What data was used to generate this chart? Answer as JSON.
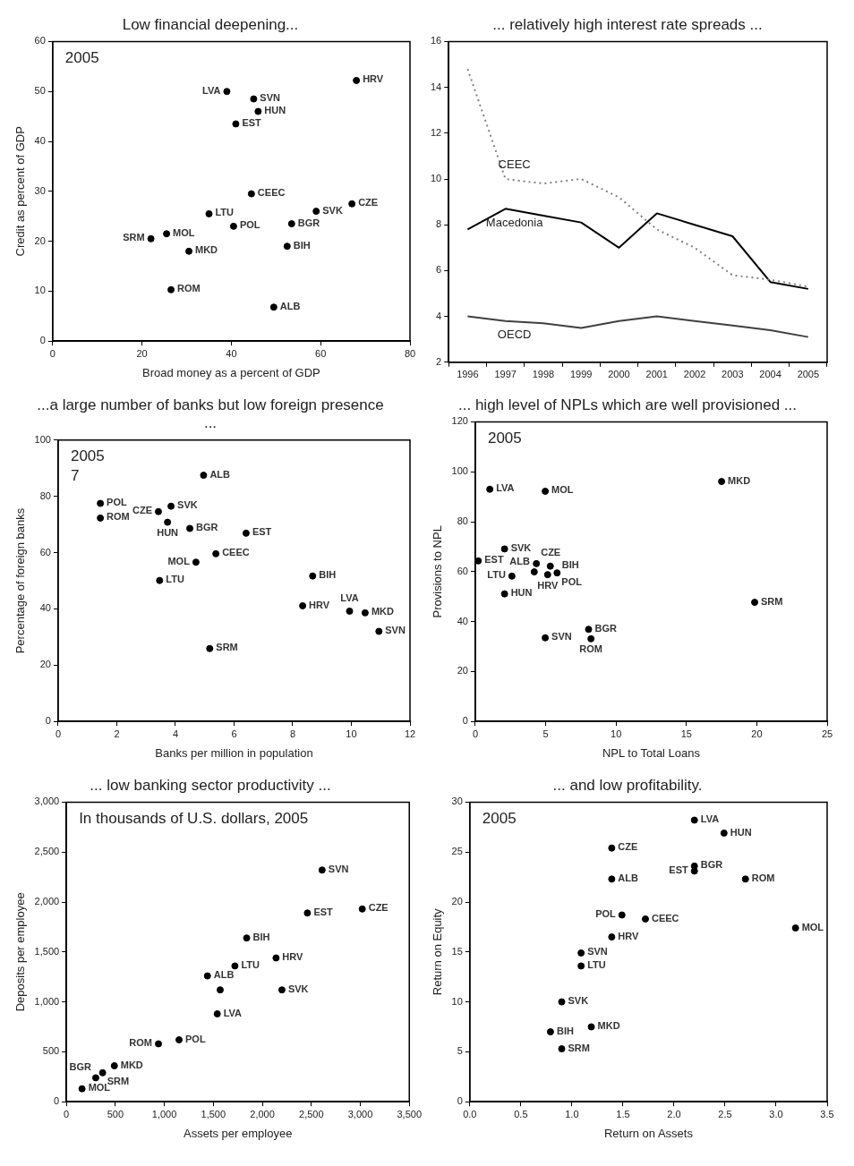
{
  "chart_data": [
    {
      "type": "scatter",
      "title": "Low financial deepening...",
      "xlabel": "Broad money as a percent of GDP",
      "ylabel": "Credit as percent of GDP",
      "xlim": [
        0,
        80
      ],
      "xticks": [
        0,
        20,
        40,
        60,
        80
      ],
      "ylim": [
        0,
        60
      ],
      "yticks": [
        0,
        10,
        20,
        30,
        40,
        50,
        60
      ],
      "marker": "circle",
      "series": [
        {
          "color": "#000000",
          "x": [
            68,
            39,
            45,
            46,
            41,
            44.5,
            35,
            59,
            67,
            53.5,
            52.5,
            40.5,
            25.5,
            22,
            30.5,
            26.5,
            49.5
          ],
          "values": [
            52.2,
            50,
            48.5,
            46,
            43.5,
            29.5,
            25.5,
            26,
            27.5,
            23.5,
            19,
            23,
            21.5,
            20.5,
            18,
            10.3,
            6.8
          ]
        }
      ],
      "annotations": [
        "2005",
        {
          "text": "HRV",
          "x": 68,
          "y": 52.2
        },
        {
          "text": "LVA",
          "x": 39,
          "y": 50
        },
        {
          "text": "SVN",
          "x": 45,
          "y": 48.5
        },
        {
          "text": "HUN",
          "x": 46,
          "y": 46
        },
        {
          "text": "EST",
          "x": 41,
          "y": 43.5
        },
        {
          "text": "CEEC",
          "x": 44.5,
          "y": 29.5
        },
        {
          "text": "LTU",
          "x": 35,
          "y": 25.5
        },
        {
          "text": "SVK",
          "x": 59,
          "y": 26
        },
        {
          "text": "CZE",
          "x": 67,
          "y": 27.5
        },
        {
          "text": "BGR",
          "x": 53.5,
          "y": 23.5
        },
        {
          "text": "BIH",
          "x": 52.5,
          "y": 19
        },
        {
          "text": "POL",
          "x": 40.5,
          "y": 23
        },
        {
          "text": "MOL",
          "x": 25.5,
          "y": 21.5
        },
        {
          "text": "SRM",
          "x": 22,
          "y": 20.5
        },
        {
          "text": "MKD",
          "x": 30.5,
          "y": 18
        },
        {
          "text": "ROM",
          "x": 26.5,
          "y": 10.3
        },
        {
          "text": "ALB",
          "x": 49.5,
          "y": 6.8
        }
      ]
    },
    {
      "type": "line",
      "title": "... relatively high interest rate spreads ...",
      "categories": [
        "1996",
        "1997",
        "1998",
        "1999",
        "2000",
        "2001",
        "2002",
        "2003",
        "2004",
        "2005"
      ],
      "ylim": [
        2,
        16
      ],
      "yticks": [
        2,
        4,
        6,
        8,
        10,
        12,
        14,
        16
      ],
      "series": [
        {
          "name": "CEEC",
          "color": "#808080",
          "line_style": "dotted",
          "values": [
            14.8,
            10,
            9.8,
            10,
            9.2,
            7.8,
            7,
            5.8,
            5.6,
            5.3
          ]
        },
        {
          "name": "Macedonia",
          "color": "#000000",
          "line_style": "solid",
          "values": [
            7.8,
            8.7,
            8.4,
            8.1,
            7,
            8.5,
            8,
            7.5,
            5.5,
            5.2
          ]
        },
        {
          "name": "OECD",
          "color": "#404040",
          "line_style": "solid",
          "values": [
            4,
            3.8,
            3.7,
            3.5,
            3.8,
            4,
            3.8,
            3.6,
            3.4,
            3.1
          ]
        }
      ]
    },
    {
      "type": "scatter",
      "title": "...a large number of banks but low foreign presence ...",
      "xlabel": "Banks per million in population",
      "ylabel": "Percentage of foreign banks",
      "xlim": [
        0,
        12
      ],
      "xticks": [
        0,
        2,
        4,
        6,
        8,
        10,
        12
      ],
      "ylim": [
        0,
        100
      ],
      "yticks": [
        0,
        20,
        40,
        60,
        80,
        100
      ],
      "marker": "circle",
      "series": [
        {
          "color": "#000000",
          "x": [
            1.44,
            1.44,
            3.42,
            3.85,
            3.73,
            4.49,
            4.96,
            6.41,
            5.38,
            4.7,
            3.46,
            5.17,
            8.68,
            8.34,
            9.94,
            10.47,
            10.94
          ],
          "values": [
            77.5,
            72.3,
            74.6,
            76.5,
            70.8,
            68.6,
            87.5,
            66.9,
            59.6,
            56.6,
            50.1,
            25.9,
            51.7,
            41.1,
            39.2,
            38.6,
            32
          ]
        }
      ],
      "annotations": [
        "2005",
        "7",
        {
          "text": "POL",
          "x": 1.44,
          "y": 77.5
        },
        {
          "text": "ROM",
          "x": 1.44,
          "y": 72.3
        },
        {
          "text": "CZE",
          "x": 3.42,
          "y": 74.6
        },
        {
          "text": "SVK",
          "x": 3.85,
          "y": 76.5
        },
        {
          "text": "HUN",
          "x": 3.73,
          "y": 70.8
        },
        {
          "text": "BGR",
          "x": 4.49,
          "y": 68.6
        },
        {
          "text": "ALB",
          "x": 4.96,
          "y": 87.5
        },
        {
          "text": "EST",
          "x": 6.41,
          "y": 66.9
        },
        {
          "text": "CEEC",
          "x": 5.38,
          "y": 59.6
        },
        {
          "text": "MOL",
          "x": 4.7,
          "y": 56.6
        },
        {
          "text": "LTU",
          "x": 3.46,
          "y": 50.1
        },
        {
          "text": "SRM",
          "x": 5.17,
          "y": 25.9
        },
        {
          "text": "BIH",
          "x": 8.68,
          "y": 51.7
        },
        {
          "text": "HRV",
          "x": 8.34,
          "y": 41.1
        },
        {
          "text": "LVA",
          "x": 9.94,
          "y": 39.2
        },
        {
          "text": "MKD",
          "x": 10.47,
          "y": 38.6
        },
        {
          "text": "SVN",
          "x": 10.94,
          "y": 32
        }
      ]
    },
    {
      "type": "scatter",
      "title": "... high level of NPLs which are well provisioned ...",
      "xlabel": "NPL to Total Loans",
      "ylabel": "Provisions to NPL",
      "xlim": [
        0,
        25
      ],
      "xticks": [
        0,
        5,
        10,
        15,
        20,
        25
      ],
      "ylim": [
        0,
        120
      ],
      "yticks": [
        0,
        20,
        40,
        60,
        80,
        100,
        120
      ],
      "marker": "circle",
      "series": [
        {
          "color": "#000000",
          "x": [
            1.03,
            4.97,
            17.5,
            2.08,
            0.21,
            2.6,
            4.34,
            4.19,
            5.33,
            5.14,
            5.81,
            2.08,
            4.97,
            8.05,
            8.22,
            19.85
          ],
          "values": [
            93,
            92.2,
            96.1,
            69.1,
            64.3,
            58.2,
            63.2,
            59.9,
            62.2,
            58.8,
            59.5,
            51.1,
            33.5,
            36.9,
            33.1,
            47.7
          ]
        }
      ],
      "annotations": [
        "2005",
        {
          "text": "LVA",
          "x": 1.03,
          "y": 93
        },
        {
          "text": "MOL",
          "x": 4.97,
          "y": 92.2
        },
        {
          "text": "MKD",
          "x": 17.5,
          "y": 96.1
        },
        {
          "text": "SVK",
          "x": 2.08,
          "y": 69.1
        },
        {
          "text": "EST",
          "x": 0.21,
          "y": 64.3
        },
        {
          "text": "LTU",
          "x": 2.6,
          "y": 58.2
        },
        {
          "text": "CZE",
          "x": 4.34,
          "y": 63.2
        },
        {
          "text": "ALB",
          "x": 4.19,
          "y": 59.9
        },
        {
          "text": "BIH",
          "x": 5.33,
          "y": 62.2
        },
        {
          "text": "HRV",
          "x": 5.14,
          "y": 58.8
        },
        {
          "text": "POL",
          "x": 5.81,
          "y": 59.5
        },
        {
          "text": "HUN",
          "x": 2.08,
          "y": 51.1
        },
        {
          "text": "SVN",
          "x": 4.97,
          "y": 33.5
        },
        {
          "text": "BGR",
          "x": 8.05,
          "y": 36.9
        },
        {
          "text": "ROM",
          "x": 8.22,
          "y": 33.1
        },
        {
          "text": "SRM",
          "x": 19.85,
          "y": 47.7
        }
      ]
    },
    {
      "type": "scatter",
      "title": "... low banking sector productivity ...",
      "xlabel": "Assets per employee",
      "ylabel": "Deposits per employee",
      "xlim": [
        0,
        3500
      ],
      "xticks": [
        0,
        500,
        {
          "value": 1000,
          "label": "1,000"
        },
        {
          "value": 1500,
          "label": "1,500"
        },
        {
          "value": 2000,
          "label": "2,000"
        },
        {
          "value": 2500,
          "label": "2,500"
        },
        {
          "value": 3000,
          "label": "3,000"
        },
        {
          "value": 3500,
          "label": "3,500"
        }
      ],
      "ylim": [
        0,
        3000
      ],
      "yticks": [
        0,
        500,
        {
          "value": 1000,
          "label": "1,000"
        },
        {
          "value": 1500,
          "label": "1,500"
        },
        {
          "value": 2000,
          "label": "2,000"
        },
        {
          "value": 2500,
          "label": "2,500"
        },
        {
          "value": 3000,
          "label": "3,000"
        }
      ],
      "marker": "circle",
      "series": [
        {
          "color": "#000000",
          "x": [
            2610,
            2460,
            3020,
            1840,
            2140,
            1440,
            1720,
            1570,
            2200,
            1540,
            1150,
            940,
            490,
            370,
            300,
            160
          ],
          "values": [
            2320,
            1890,
            1930,
            1640,
            1440,
            1260,
            1360,
            1120,
            1120,
            880,
            620,
            580,
            360,
            290,
            240,
            130
          ]
        }
      ],
      "annotations": [
        "In thousands of U.S. dollars, 2005",
        {
          "text": "SVN",
          "x": 2610,
          "y": 2320
        },
        {
          "text": "EST",
          "x": 2460,
          "y": 1890
        },
        {
          "text": "CZE",
          "x": 3020,
          "y": 1930
        },
        {
          "text": "BIH",
          "x": 1840,
          "y": 1640
        },
        {
          "text": "HRV",
          "x": 2140,
          "y": 1440
        },
        {
          "text": "ALB",
          "x": 1440,
          "y": 1260
        },
        {
          "text": "LTU",
          "x": 1720,
          "y": 1360
        },
        {
          "text": "SVK",
          "x": 2200,
          "y": 1120
        },
        {
          "text": "LVA",
          "x": 1540,
          "y": 880
        },
        {
          "text": "POL",
          "x": 1150,
          "y": 620
        },
        {
          "text": "ROM",
          "x": 940,
          "y": 580
        },
        {
          "text": "MKD",
          "x": 490,
          "y": 360
        },
        {
          "text": "SRM",
          "x": 370,
          "y": 290
        },
        {
          "text": "BGR",
          "x": 300,
          "y": 240
        },
        {
          "text": "MOL",
          "x": 160,
          "y": 130
        }
      ]
    },
    {
      "type": "scatter",
      "title": "... and low profitability.",
      "xlabel": "Return on Assets",
      "ylabel": "Return on Equity",
      "xlim": [
        0,
        3.5
      ],
      "xticks": [
        {
          "value": 0,
          "label": "0.0"
        },
        0.5,
        {
          "value": 1,
          "label": "1.0"
        },
        1.5,
        {
          "value": 2,
          "label": "2.0"
        },
        2.5,
        {
          "value": 3,
          "label": "3.0"
        },
        3.5
      ],
      "ylim": [
        0,
        30
      ],
      "yticks": [
        0,
        5,
        10,
        15,
        20,
        25,
        30
      ],
      "marker": "circle",
      "series": [
        {
          "color": "#000000",
          "x": [
            2.2,
            2.49,
            1.39,
            2.2,
            2.2,
            1.39,
            2.7,
            1.49,
            1.72,
            1.39,
            1.09,
            1.09,
            0.9,
            1.19,
            0.79,
            0.9,
            3.19
          ],
          "values": [
            28.2,
            26.9,
            25.4,
            23.6,
            23.1,
            22.3,
            22.3,
            18.7,
            18.3,
            16.5,
            14.9,
            13.6,
            10,
            7.5,
            7,
            5.3,
            17.4
          ]
        }
      ],
      "annotations": [
        "2005",
        {
          "text": "LVA",
          "x": 2.2,
          "y": 28.2
        },
        {
          "text": "HUN",
          "x": 2.49,
          "y": 26.9
        },
        {
          "text": "CZE",
          "x": 1.39,
          "y": 25.4
        },
        {
          "text": "BGR",
          "x": 2.2,
          "y": 23.6
        },
        {
          "text": "EST",
          "x": 2.2,
          "y": 23.1
        },
        {
          "text": "ALB",
          "x": 1.39,
          "y": 22.3
        },
        {
          "text": "ROM",
          "x": 2.7,
          "y": 22.3
        },
        {
          "text": "POL",
          "x": 1.49,
          "y": 18.7
        },
        {
          "text": "CEEC",
          "x": 1.72,
          "y": 18.3
        },
        {
          "text": "HRV",
          "x": 1.39,
          "y": 16.5
        },
        {
          "text": "SVN",
          "x": 1.09,
          "y": 14.9
        },
        {
          "text": "LTU",
          "x": 1.09,
          "y": 13.6
        },
        {
          "text": "SVK",
          "x": 0.9,
          "y": 10
        },
        {
          "text": "MKD",
          "x": 1.19,
          "y": 7.5
        },
        {
          "text": "BIH",
          "x": 0.79,
          "y": 7
        },
        {
          "text": "SRM",
          "x": 0.9,
          "y": 5.3
        },
        {
          "text": "MOL",
          "x": 3.19,
          "y": 17.4
        }
      ]
    }
  ]
}
